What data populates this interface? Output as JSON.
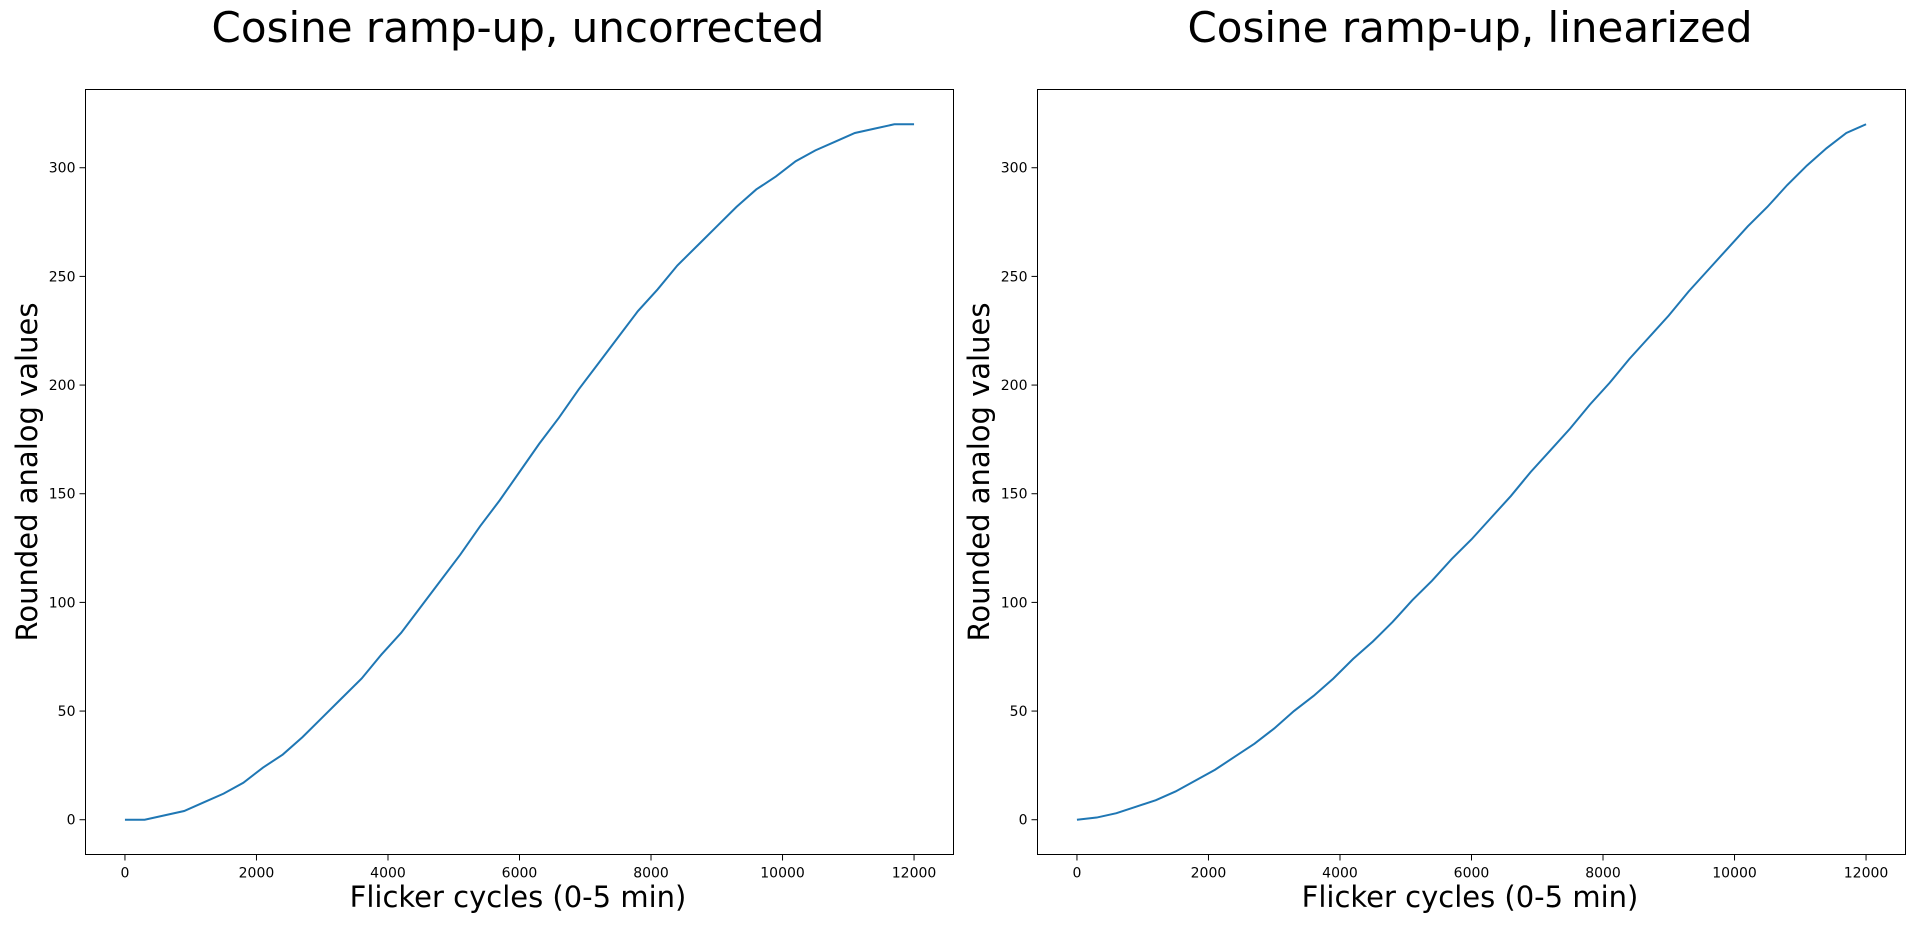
{
  "chart_data": [
    {
      "type": "line",
      "title": "Cosine ramp-up, uncorrected",
      "xlabel": "Flicker cycles (0-5 min)",
      "ylabel": "Rounded analog values",
      "xlim": [
        -600,
        12600
      ],
      "ylim": [
        -16,
        336
      ],
      "xticks": [
        0,
        2000,
        4000,
        6000,
        8000,
        10000,
        12000
      ],
      "yticks": [
        0,
        50,
        100,
        150,
        200,
        250,
        300
      ],
      "grid": false,
      "legend": "none",
      "series": [
        {
          "color": "#1f77b4",
          "x": [
            0,
            300,
            600,
            900,
            1200,
            1500,
            1800,
            2100,
            2400,
            2700,
            3000,
            3300,
            3600,
            3900,
            4200,
            4500,
            4800,
            5100,
            5400,
            5700,
            6000,
            6300,
            6600,
            6900,
            7200,
            7500,
            7800,
            8100,
            8400,
            8700,
            9000,
            9300,
            9600,
            9900,
            10200,
            10500,
            10800,
            11100,
            11400,
            11700,
            12000
          ],
          "y": [
            0,
            0,
            2,
            4,
            8,
            12,
            17,
            24,
            30,
            38,
            47,
            56,
            65,
            76,
            86,
            98,
            110,
            122,
            135,
            147,
            160,
            173,
            185,
            198,
            210,
            222,
            234,
            244,
            255,
            264,
            273,
            282,
            290,
            296,
            303,
            308,
            312,
            316,
            318,
            320,
            320
          ]
        }
      ]
    },
    {
      "type": "line",
      "title": "Cosine ramp-up, linearized",
      "xlabel": "Flicker cycles (0-5 min)",
      "ylabel": "Rounded analog values",
      "xlim": [
        -600,
        12600
      ],
      "ylim": [
        -16,
        336
      ],
      "xticks": [
        0,
        2000,
        4000,
        6000,
        8000,
        10000,
        12000
      ],
      "yticks": [
        0,
        50,
        100,
        150,
        200,
        250,
        300
      ],
      "grid": false,
      "legend": "none",
      "series": [
        {
          "color": "#1f77b4",
          "x": [
            0,
            300,
            600,
            900,
            1200,
            1500,
            1800,
            2100,
            2400,
            2700,
            3000,
            3300,
            3600,
            3900,
            4200,
            4500,
            4800,
            5100,
            5400,
            5700,
            6000,
            6300,
            6600,
            6900,
            7200,
            7500,
            7800,
            8100,
            8400,
            8700,
            9000,
            9300,
            9600,
            9900,
            10200,
            10500,
            10800,
            11100,
            11400,
            11700,
            12000
          ],
          "y": [
            0,
            1,
            3,
            6,
            9,
            13,
            18,
            23,
            29,
            35,
            42,
            50,
            57,
            65,
            74,
            82,
            91,
            101,
            110,
            120,
            129,
            139,
            149,
            160,
            170,
            180,
            191,
            201,
            212,
            222,
            232,
            243,
            253,
            263,
            273,
            282,
            292,
            301,
            309,
            316,
            320
          ]
        }
      ]
    }
  ]
}
